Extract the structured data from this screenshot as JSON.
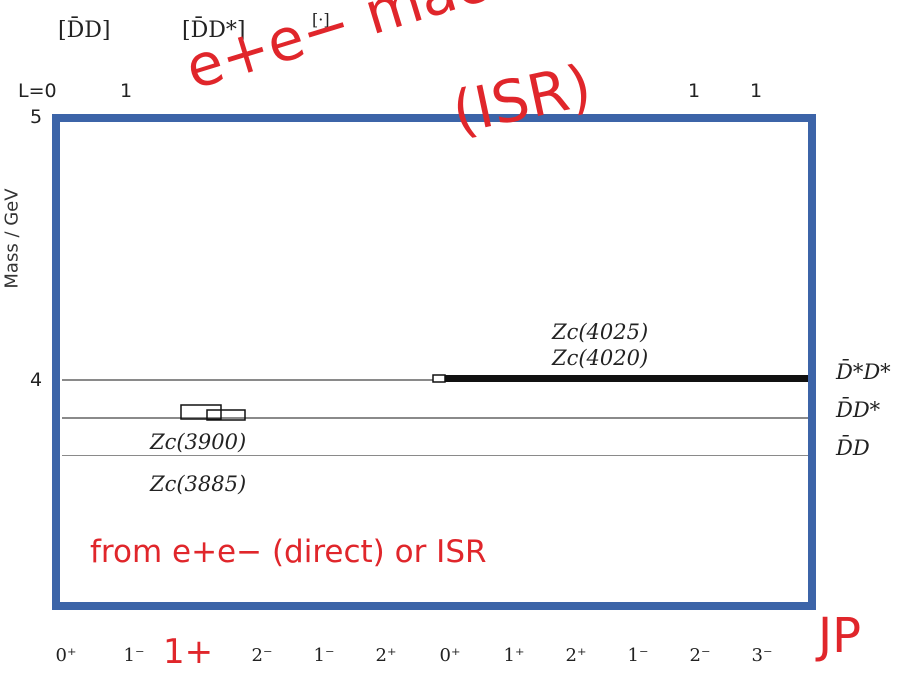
{
  "header": {
    "threshold_cols": [
      "[D̄D]",
      "[D̄D*]",
      "[·]"
    ],
    "L_label": "L=0",
    "L_values_left": [
      "1"
    ],
    "L_values_right": [
      "1",
      "1"
    ]
  },
  "axis": {
    "y_label": "Mass / GeV",
    "ticks": [
      {
        "label": "5"
      },
      {
        "label": "4"
      }
    ]
  },
  "thresholds": [
    {
      "label": "D̄*D*"
    },
    {
      "label": "D̄D*"
    },
    {
      "label": "D̄D"
    }
  ],
  "states": [
    {
      "label": "Zc(4025)"
    },
    {
      "label": "Zc(4020)"
    },
    {
      "label": "Zc(3900)"
    },
    {
      "label": "Zc(3885)"
    }
  ],
  "jp_labels": [
    "0⁺",
    "1⁻",
    "1+",
    "2⁻",
    "1⁻",
    "2⁺",
    "0⁺",
    "1⁺",
    "2⁺",
    "1⁻",
    "2⁻",
    "3⁻"
  ],
  "jp_axis_label": "JP",
  "annotations": {
    "machine": "e+e− machine",
    "isr": "(ISR)",
    "from_text": "from e+e− (direct) or ISR"
  },
  "colors": {
    "frame": "#3c64a8",
    "annotation": "#e0262b"
  }
}
